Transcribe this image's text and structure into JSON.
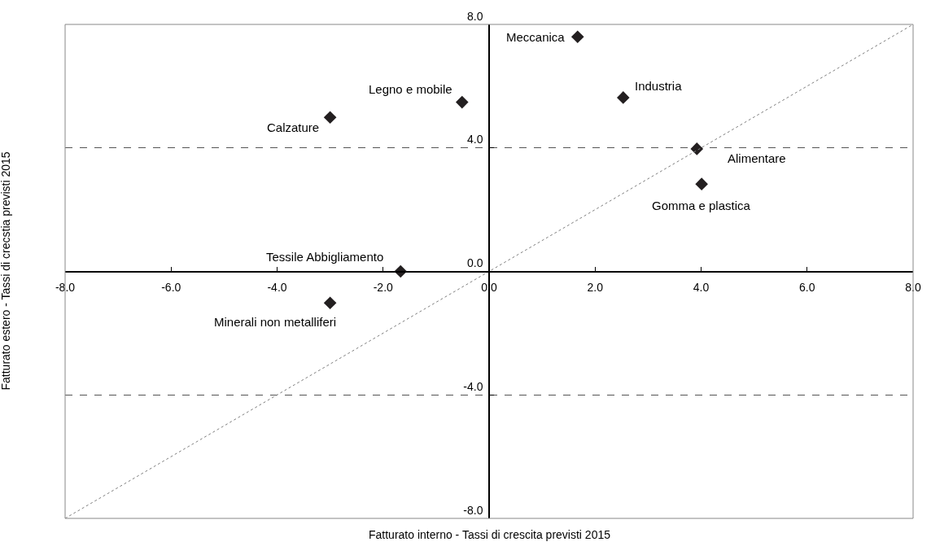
{
  "chart_data": {
    "type": "scatter",
    "xlabel": "Fatturato interno - Tassi di crescita previsti 2015",
    "ylabel": "Fatturato estero - Tassi di crecstia previsti 2015",
    "x": [
      1.67,
      2.53,
      3.92,
      4.01,
      -0.51,
      -3.0,
      -1.67,
      -3.0
    ],
    "series": [
      {
        "color": "#231f20",
        "marker": "diamond",
        "values": [
          7.6,
          5.63,
          3.97,
          2.83,
          5.48,
          4.99,
          0.0,
          -1.02
        ]
      },
      {
        "type": "line",
        "color": "#808080",
        "line_style": "dotted",
        "x": [
          -8,
          8
        ],
        "values": [
          -8,
          8
        ]
      }
    ],
    "annotations": [
      {
        "text": "Meccanica",
        "x": 1.67,
        "y": 7.6
      },
      {
        "text": "Industria",
        "x": 2.53,
        "y": 5.63
      },
      {
        "text": "Alimentare",
        "x": 3.92,
        "y": 3.97
      },
      {
        "text": "Gomma e plastica",
        "x": 4.01,
        "y": 2.83
      },
      {
        "text": "Legno e mobile",
        "x": -0.51,
        "y": 5.48
      },
      {
        "text": "Calzature",
        "x": -3.0,
        "y": 4.99
      },
      {
        "text": "Tessile Abbigliamento",
        "x": -1.67,
        "y": 0.0
      },
      {
        "text": "Minerali non metalliferi",
        "x": -3.0,
        "y": -1.02
      }
    ],
    "xlim": [
      -8,
      8
    ],
    "ylim": [
      -8,
      8
    ],
    "xticks": [
      {
        "value": -8,
        "label": "-8.0"
      },
      {
        "value": -6,
        "label": "-6.0"
      },
      {
        "value": -4,
        "label": "-4.0"
      },
      {
        "value": -2,
        "label": "-2.0"
      },
      {
        "value": 0,
        "label": "0.0"
      },
      {
        "value": 2,
        "label": "2.0"
      },
      {
        "value": 4,
        "label": "4.0"
      },
      {
        "value": 6,
        "label": "6.0"
      },
      {
        "value": 8,
        "label": "8.0"
      }
    ],
    "yticks": [
      {
        "value": -8,
        "label": "-8.0"
      },
      {
        "value": -4,
        "label": "-4.0"
      },
      {
        "value": 0,
        "label": "0.0"
      },
      {
        "value": 4,
        "label": "4.0"
      },
      {
        "value": 8,
        "label": "8.0"
      }
    ],
    "grid": "y"
  }
}
